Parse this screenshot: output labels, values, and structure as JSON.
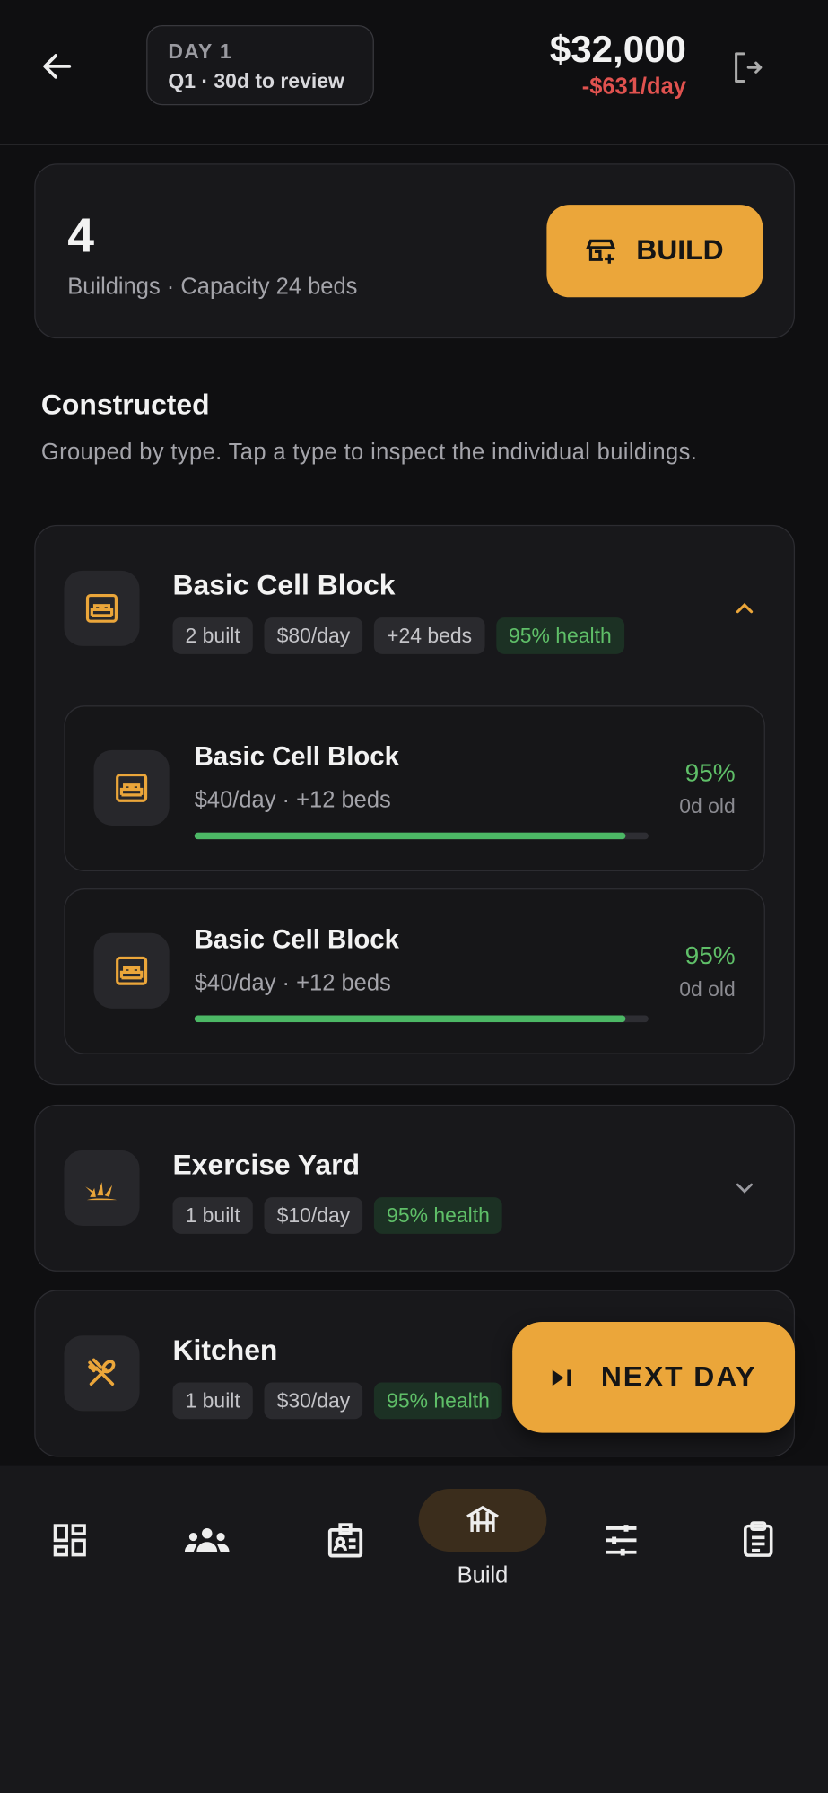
{
  "header": {
    "day": "DAY 1",
    "quarter": "Q1 · 30d to review",
    "money": "$32,000",
    "burn": "-$631/day"
  },
  "summary": {
    "count": "4",
    "caption": "Buildings · Capacity 24 beds",
    "button": "BUILD"
  },
  "section": {
    "title": "Constructed",
    "subtitle": "Grouped by type. Tap a type to inspect the individual buildings."
  },
  "groups": [
    {
      "name": "Basic Cell Block",
      "tags": [
        "2 built",
        "$80/day",
        "+24 beds"
      ],
      "health_tag": "95% health",
      "expanded": true,
      "items": [
        {
          "name": "Basic Cell Block",
          "detail": "$40/day · +12 beds",
          "health": 95,
          "health_label": "95%",
          "age": "0d old"
        },
        {
          "name": "Basic Cell Block",
          "detail": "$40/day · +12 beds",
          "health": 95,
          "health_label": "95%",
          "age": "0d old"
        }
      ]
    },
    {
      "name": "Exercise Yard",
      "tags": [
        "1 built",
        "$10/day"
      ],
      "health_tag": "95% health",
      "expanded": false,
      "items": []
    },
    {
      "name": "Kitchen",
      "tags": [
        "1 built",
        "$30/day"
      ],
      "health_tag": "95% health",
      "expanded": false,
      "items": []
    }
  ],
  "fab": {
    "label": "NEXT DAY"
  },
  "nav": {
    "active": "Build"
  }
}
